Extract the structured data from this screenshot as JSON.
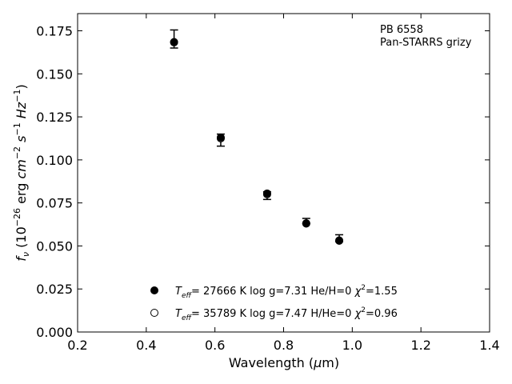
{
  "chart_data": {
    "type": "scatter",
    "title": "",
    "xlabel": "Wavelength (μm)",
    "ylabel": "f_ν (10^-26 erg cm^-2 s^-1 Hz^-1)",
    "xlim": [
      0.2,
      1.4
    ],
    "ylim": [
      0.0,
      0.185
    ],
    "xticks": [
      "0.2",
      "0.4",
      "0.6",
      "0.8",
      "1.0",
      "1.2",
      "1.4"
    ],
    "yticks": [
      "0.000",
      "0.025",
      "0.050",
      "0.075",
      "0.100",
      "0.125",
      "0.150",
      "0.175"
    ],
    "annotation": [
      "PB 6558",
      "Pan-STARRS grizy"
    ],
    "observed": {
      "x": [
        0.481,
        0.617,
        0.752,
        0.866,
        0.962
      ],
      "y": [
        0.17,
        0.1115,
        0.0805,
        0.0645,
        0.054
      ],
      "yerr_low": [
        0.005,
        0.0035,
        0.0035,
        0.0015,
        0.0015
      ],
      "yerr_high": [
        0.0055,
        0.0035,
        0.001,
        0.0015,
        0.0025
      ]
    },
    "series": [
      {
        "name": "T_eff= 27666 K  log g=7.31  He/H=0  χ²=1.55",
        "marker": "filled-circle",
        "x": [
          0.481,
          0.617,
          0.752,
          0.866,
          0.962
        ],
        "y": [
          0.1683,
          0.113,
          0.0805,
          0.063,
          0.053
        ]
      },
      {
        "name": "T_eff= 35789 K  log g=7.47  H/He=0  χ²=0.96",
        "marker": "open-circle",
        "x": [
          0.481,
          0.617,
          0.752,
          0.866,
          0.962
        ],
        "y": [
          0.1685,
          0.1125,
          0.08,
          0.0632,
          0.0532
        ]
      }
    ],
    "legend_position": "lower-center"
  }
}
